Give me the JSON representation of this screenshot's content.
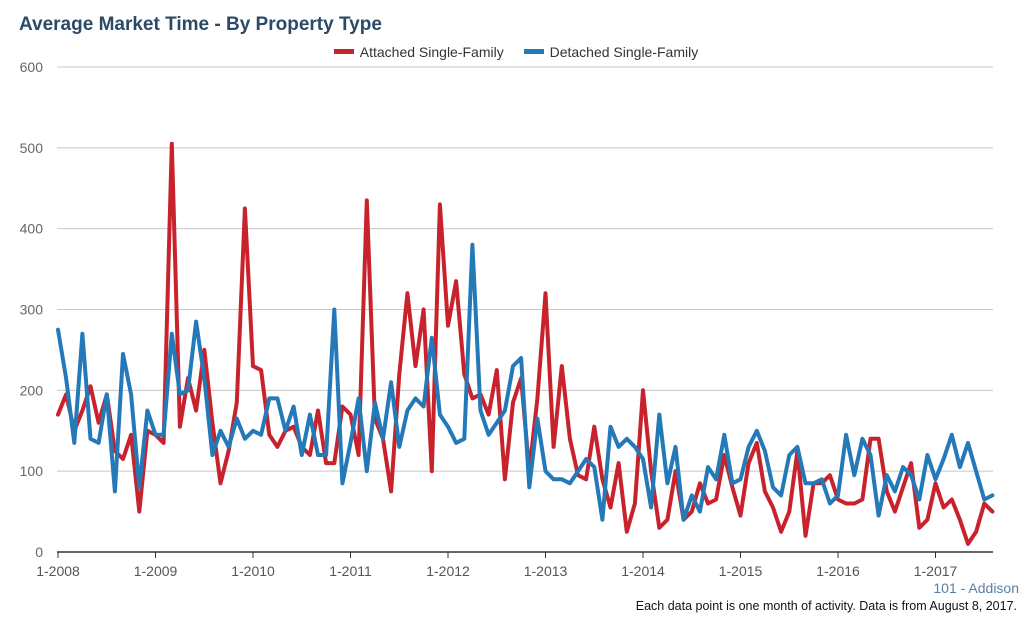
{
  "chart_data": {
    "type": "line",
    "title": "Average Market Time - By Property Type",
    "subtitle": "101 - Addison",
    "footnote": "Each data point is one month of activity. Data is from August 8, 2017.",
    "ylim": [
      0,
      600
    ],
    "y_ticks": [
      0,
      100,
      200,
      300,
      400,
      500,
      600
    ],
    "x_start": "1-2008",
    "x_end": "7-2017",
    "x_tick_labels": [
      "1-2008",
      "1-2009",
      "1-2010",
      "1-2011",
      "1-2012",
      "1-2013",
      "1-2014",
      "1-2015",
      "1-2016",
      "1-2017"
    ],
    "legend_position": "top-center",
    "grid": true,
    "series": [
      {
        "name": "Attached Single-Family",
        "color": "#c8232c",
        "values": [
          170,
          195,
          150,
          175,
          205,
          160,
          195,
          125,
          115,
          145,
          50,
          150,
          145,
          135,
          505,
          155,
          215,
          175,
          250,
          160,
          85,
          125,
          185,
          425,
          230,
          225,
          145,
          130,
          150,
          155,
          130,
          120,
          175,
          110,
          110,
          180,
          170,
          120,
          435,
          165,
          140,
          75,
          220,
          320,
          230,
          300,
          100,
          430,
          280,
          335,
          220,
          190,
          195,
          170,
          225,
          90,
          185,
          215,
          100,
          190,
          320,
          130,
          230,
          140,
          95,
          90,
          155,
          90,
          55,
          110,
          25,
          60,
          200,
          100,
          30,
          40,
          100,
          40,
          50,
          85,
          60,
          65,
          120,
          80,
          45,
          110,
          135,
          75,
          55,
          25,
          50,
          125,
          20,
          85,
          85,
          95,
          65,
          60,
          60,
          65,
          140,
          140,
          75,
          50,
          80,
          110,
          30,
          40,
          85,
          55,
          65,
          40,
          10,
          25,
          60,
          50
        ],
        "value_precision": "approximate, read from gridlines"
      },
      {
        "name": "Detached Single-Family",
        "color": "#2479b8",
        "values": [
          275,
          215,
          135,
          270,
          140,
          135,
          195,
          75,
          245,
          195,
          80,
          175,
          145,
          145,
          270,
          195,
          200,
          285,
          215,
          120,
          150,
          130,
          165,
          140,
          150,
          145,
          190,
          190,
          150,
          180,
          120,
          170,
          120,
          120,
          300,
          85,
          135,
          190,
          100,
          185,
          140,
          210,
          130,
          175,
          190,
          180,
          265,
          170,
          155,
          135,
          140,
          380,
          175,
          145,
          160,
          175,
          230,
          240,
          80,
          165,
          100,
          90,
          90,
          85,
          100,
          115,
          105,
          40,
          155,
          130,
          140,
          130,
          115,
          55,
          170,
          85,
          130,
          40,
          70,
          50,
          105,
          90,
          145,
          85,
          90,
          130,
          150,
          125,
          80,
          70,
          120,
          130,
          85,
          85,
          90,
          60,
          70,
          145,
          95,
          140,
          120,
          45,
          95,
          75,
          105,
          95,
          65,
          120,
          90,
          115,
          145,
          105,
          135,
          100,
          65,
          70
        ],
        "value_precision": "approximate, read from gridlines"
      }
    ]
  }
}
